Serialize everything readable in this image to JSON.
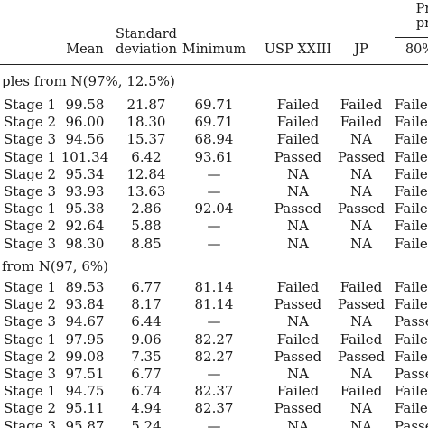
{
  "table": {
    "headers": {
      "mean": "Mean",
      "sd_line1": "Standard",
      "sd_line2": "deviation",
      "minimum": "Minimum",
      "usp": "USP XXIII",
      "jp": "JP",
      "pr_line1": "Pr",
      "pr_line2": "pr",
      "pct": "80%"
    },
    "sections": [
      {
        "title": "ples from N(97%, 12.5%)",
        "rows": [
          {
            "stage": "Stage 1",
            "mean": "99.58",
            "sd": "21.87",
            "min": "69.71",
            "usp": "Failed",
            "jp": "Failed",
            "last": "Faile"
          },
          {
            "stage": "Stage 2",
            "mean": "96.00",
            "sd": "18.30",
            "min": "69.71",
            "usp": "Failed",
            "jp": "Failed",
            "last": "Faile"
          },
          {
            "stage": "Stage 3",
            "mean": "94.56",
            "sd": "15.37",
            "min": "68.94",
            "usp": "Failed",
            "jp": "NA",
            "last": "Faile"
          },
          {
            "stage": "Stage 1",
            "mean": "101.34",
            "sd": "6.42",
            "min": "93.61",
            "usp": "Passed",
            "jp": "Passed",
            "last": "Faile"
          },
          {
            "stage": "Stage 2",
            "mean": "95.34",
            "sd": "12.84",
            "min": "—",
            "usp": "NA",
            "jp": "NA",
            "last": "Faile"
          },
          {
            "stage": "Stage 3",
            "mean": "93.93",
            "sd": "13.63",
            "min": "—",
            "usp": "NA",
            "jp": "NA",
            "last": "Faile"
          },
          {
            "stage": "Stage 1",
            "mean": "95.38",
            "sd": "2.86",
            "min": "92.04",
            "usp": "Passed",
            "jp": "Passed",
            "last": "Faile"
          },
          {
            "stage": "Stage 2",
            "mean": "92.64",
            "sd": "5.88",
            "min": "—",
            "usp": "NA",
            "jp": "NA",
            "last": "Faile"
          },
          {
            "stage": "Stage 3",
            "mean": "98.30",
            "sd": "8.85",
            "min": "—",
            "usp": "NA",
            "jp": "NA",
            "last": "Faile"
          }
        ]
      },
      {
        "title": "from N(97, 6%)",
        "rows": [
          {
            "stage": "Stage 1",
            "mean": "89.53",
            "sd": "6.77",
            "min": "81.14",
            "usp": "Failed",
            "jp": "Failed",
            "last": "Faile"
          },
          {
            "stage": "Stage 2",
            "mean": "93.84",
            "sd": "8.17",
            "min": "81.14",
            "usp": "Passed",
            "jp": "Passed",
            "last": "Faile"
          },
          {
            "stage": "Stage 3",
            "mean": "94.67",
            "sd": "6.44",
            "min": "—",
            "usp": "NA",
            "jp": "NA",
            "last": "Passe"
          },
          {
            "stage": "Stage 1",
            "mean": "97.95",
            "sd": "9.06",
            "min": "82.27",
            "usp": "Failed",
            "jp": "Failed",
            "last": "Faile"
          },
          {
            "stage": "Stage 2",
            "mean": "99.08",
            "sd": "7.35",
            "min": "82.27",
            "usp": "Passed",
            "jp": "Passed",
            "last": "Faile"
          },
          {
            "stage": "Stage 3",
            "mean": "97.51",
            "sd": "6.77",
            "min": "—",
            "usp": "NA",
            "jp": "NA",
            "last": "Passe"
          },
          {
            "stage": "Stage 1",
            "mean": "94.75",
            "sd": "6.74",
            "min": "82.37",
            "usp": "Failed",
            "jp": "Failed",
            "last": "Faile"
          },
          {
            "stage": "Stage 2",
            "mean": "95.11",
            "sd": "4.94",
            "min": "82.37",
            "usp": "Passed",
            "jp": "NA",
            "last": "Faile"
          },
          {
            "stage": "Stage 3",
            "mean": "95.87",
            "sd": "5.24",
            "min": "—",
            "usp": "NA",
            "jp": "NA",
            "last": "Passe"
          }
        ]
      }
    ]
  }
}
